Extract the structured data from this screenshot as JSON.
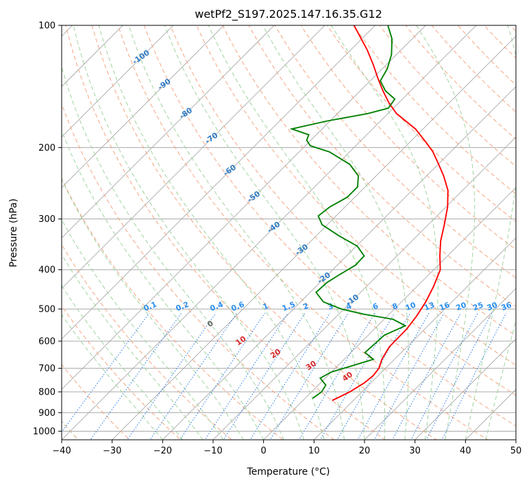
{
  "chart_data": {
    "type": "skew-t",
    "title": "wetPf2_S197.2025.147.16.35.G12",
    "xlabel": "Temperature (°C)",
    "ylabel": "Pressure (hPa)",
    "xlim": [
      -40,
      50
    ],
    "ylim": [
      1050,
      100
    ],
    "y_scale": "log",
    "grid": true,
    "x_ticks": [
      -40,
      -30,
      -20,
      -10,
      0,
      10,
      20,
      30,
      40,
      50
    ],
    "x_tick_labels": [
      "−40",
      "−30",
      "−20",
      "−10",
      "0",
      "10",
      "20",
      "30",
      "40",
      "50"
    ],
    "y_ticks": [
      1000,
      900,
      800,
      700,
      600,
      500,
      400,
      300,
      200,
      100
    ],
    "y_tick_labels": [
      "1000",
      "900",
      "800",
      "700",
      "600",
      "500",
      "400",
      "300",
      "200",
      "100"
    ],
    "colors": {
      "temperature": "#ff0000",
      "dewpoint": "#008000",
      "isotherm": "#a8a8a8",
      "isobar": "#a8a8a8",
      "dry_adiabat": "#f4a582",
      "moist_adiabat": "#9fd39f",
      "mixing_ratio": "#1f77e6",
      "label_blue": "#2e7bc4",
      "label_mix": "#2b8ff0",
      "label_red": "#d62728",
      "label_gray": "#666666",
      "outer_adiabat": "#d2b48c"
    },
    "series": [
      {
        "name": "Temperature",
        "points": [
          {
            "p": 840,
            "t": 5.8
          },
          {
            "p": 800,
            "t": 7.6
          },
          {
            "p": 760,
            "t": 8.7
          },
          {
            "p": 730,
            "t": 9.0
          },
          {
            "p": 700,
            "t": 8.7
          },
          {
            "p": 665,
            "t": 7.5
          },
          {
            "p": 620,
            "t": 6.5
          },
          {
            "p": 560,
            "t": 6.4
          },
          {
            "p": 520,
            "t": 5.8
          },
          {
            "p": 480,
            "t": 4.8
          },
          {
            "p": 440,
            "t": 3.3
          },
          {
            "p": 400,
            "t": 1.3
          },
          {
            "p": 370,
            "t": -1.5
          },
          {
            "p": 340,
            "t": -4.3
          },
          {
            "p": 310,
            "t": -6.8
          },
          {
            "p": 280,
            "t": -9.7
          },
          {
            "p": 255,
            "t": -12.9
          },
          {
            "p": 235,
            "t": -16.6
          },
          {
            "p": 220,
            "t": -19.9
          },
          {
            "p": 205,
            "t": -23.5
          },
          {
            "p": 195,
            "t": -26.5
          },
          {
            "p": 180,
            "t": -31.5
          },
          {
            "p": 165,
            "t": -38.3
          },
          {
            "p": 155,
            "t": -42.0
          },
          {
            "p": 145,
            "t": -45.5
          },
          {
            "p": 135,
            "t": -49.0
          },
          {
            "p": 125,
            "t": -52.6
          },
          {
            "p": 115,
            "t": -56.7
          },
          {
            "p": 100,
            "t": -64.2
          }
        ]
      },
      {
        "name": "Dewpoint",
        "points": [
          {
            "p": 830,
            "t": 1.5
          },
          {
            "p": 800,
            "t": 2.0
          },
          {
            "p": 770,
            "t": 1.5
          },
          {
            "p": 740,
            "t": -1.0
          },
          {
            "p": 715,
            "t": 0.0
          },
          {
            "p": 695,
            "t": 2.3
          },
          {
            "p": 665,
            "t": 5.8
          },
          {
            "p": 640,
            "t": 2.8
          },
          {
            "p": 610,
            "t": 3.0
          },
          {
            "p": 580,
            "t": 3.2
          },
          {
            "p": 550,
            "t": 5.5
          },
          {
            "p": 530,
            "t": 1.8
          },
          {
            "p": 515,
            "t": -5.0
          },
          {
            "p": 500,
            "t": -10.5
          },
          {
            "p": 480,
            "t": -15.5
          },
          {
            "p": 455,
            "t": -18.8
          },
          {
            "p": 430,
            "t": -18.6
          },
          {
            "p": 410,
            "t": -17.6
          },
          {
            "p": 390,
            "t": -16.4
          },
          {
            "p": 370,
            "t": -16.5
          },
          {
            "p": 350,
            "t": -19.8
          },
          {
            "p": 330,
            "t": -25.5
          },
          {
            "p": 310,
            "t": -31.0
          },
          {
            "p": 295,
            "t": -33.5
          },
          {
            "p": 280,
            "t": -33.0
          },
          {
            "p": 265,
            "t": -31.5
          },
          {
            "p": 250,
            "t": -31.5
          },
          {
            "p": 235,
            "t": -33.5
          },
          {
            "p": 220,
            "t": -37.5
          },
          {
            "p": 205,
            "t": -44.0
          },
          {
            "p": 198,
            "t": -49.0
          },
          {
            "p": 192,
            "t": -50.8
          },
          {
            "p": 186,
            "t": -51.5
          },
          {
            "p": 180,
            "t": -56.0
          },
          {
            "p": 172,
            "t": -50.5
          },
          {
            "p": 165,
            "t": -44.0
          },
          {
            "p": 160,
            "t": -41.0
          },
          {
            "p": 152,
            "t": -41.5
          },
          {
            "p": 145,
            "t": -45.0
          },
          {
            "p": 137,
            "t": -48.0
          },
          {
            "p": 128,
            "t": -49.0
          },
          {
            "p": 118,
            "t": -51.0
          },
          {
            "p": 108,
            "t": -54.0
          },
          {
            "p": 100,
            "t": -57.5
          }
        ]
      }
    ],
    "dry_adiabat_labels": [
      "-100",
      "-90",
      "-80",
      "-70",
      "-60",
      "-50",
      "-40",
      "-30",
      "-20",
      "-10",
      "0",
      "10",
      "20",
      "30",
      "40"
    ],
    "mixing_ratio_labels": [
      "0.1",
      "0.2",
      "0.4",
      "0.6",
      "1",
      "1.5",
      "2",
      "3",
      "4",
      "6",
      "8",
      "10",
      "13",
      "16",
      "20",
      "25",
      "30",
      "36"
    ]
  }
}
